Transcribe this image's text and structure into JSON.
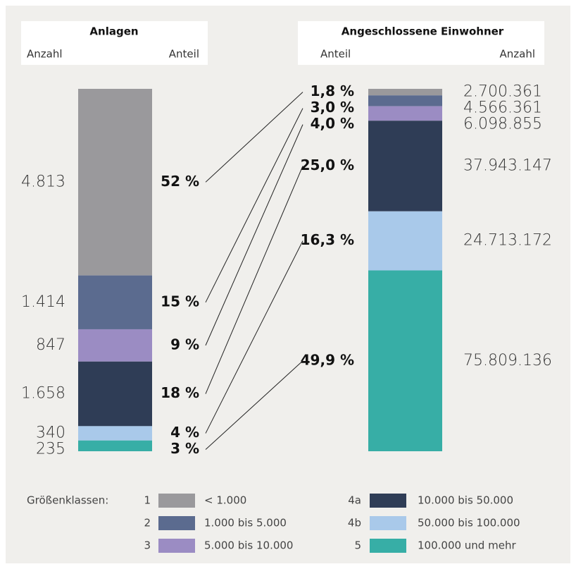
{
  "chart_data": {
    "type": "bar",
    "stacked": true,
    "legend_title": "Größenklassen:",
    "classes": [
      {
        "id": "1",
        "name": "< 1.000",
        "color": "#9a999c"
      },
      {
        "id": "2",
        "name": "1.000 bis 5.000",
        "color": "#5b6b8f"
      },
      {
        "id": "3",
        "name": "5.000 bis 10.000",
        "color": "#9b8cc3"
      },
      {
        "id": "4a",
        "name": "10.000 bis 50.000",
        "color": "#2f3d56"
      },
      {
        "id": "4b",
        "name": "50.000 bis 100.000",
        "color": "#a9c9ea"
      },
      {
        "id": "5",
        "name": "100.000 und mehr",
        "color": "#37aea6"
      }
    ],
    "panels": [
      {
        "title": "Anlagen",
        "count_label": "Anzahl",
        "share_label": "Anteil",
        "counts": [
          4813,
          1414,
          847,
          1658,
          340,
          235
        ],
        "count_labels": [
          "4.813",
          "1.414",
          "847",
          "1.658",
          "340",
          "235"
        ],
        "shares": [
          52,
          15,
          9,
          18,
          4,
          3
        ],
        "share_labels": [
          "52 %",
          "15 %",
          "9 %",
          "18 %",
          "4 %",
          "3 %"
        ]
      },
      {
        "title": "Angeschlossene Einwohner",
        "count_label": "Anzahl",
        "share_label": "Anteil",
        "counts": [
          2700361,
          4566361,
          6098855,
          37943147,
          24713172,
          75809136
        ],
        "count_labels": [
          "2.700.361",
          "4.566.361",
          "6.098.855",
          "37.943.147",
          "24.713.172",
          "75.809.136"
        ],
        "shares": [
          1.8,
          3.0,
          4.0,
          25.0,
          16.3,
          49.9
        ],
        "share_labels": [
          "1,8 %",
          "3,0 %",
          "4,0 %",
          "25,0 %",
          "16,3 %",
          "49,9 %"
        ]
      }
    ]
  }
}
